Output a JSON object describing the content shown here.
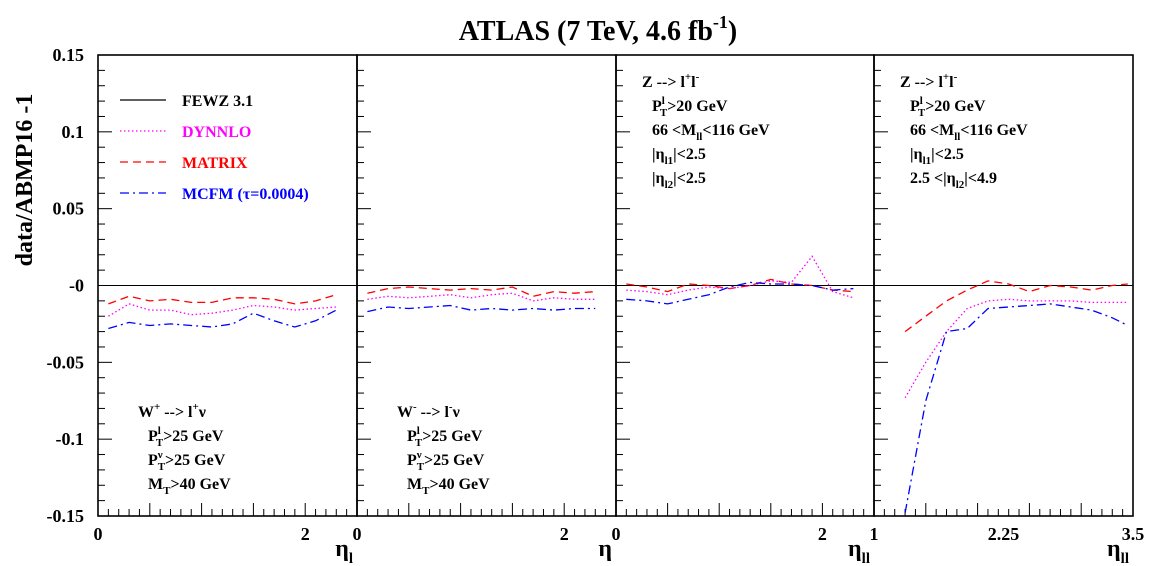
{
  "chart_data": {
    "type": "line",
    "title": {
      "main": "ATLAS (7 TeV, 4.6 fb",
      "sup": "-1",
      "close": ")"
    },
    "ylabel": "data/ABMP16 -1",
    "ylim": [
      -0.15,
      0.15
    ],
    "y_ticks": [
      "0.15",
      "0.1",
      "0.05",
      "-0",
      "-0.05",
      "-0.1",
      "-0.15"
    ],
    "y_tick_values": [
      0.15,
      0.1,
      0.05,
      0,
      -0.05,
      -0.1,
      -0.15
    ],
    "zero_line": true,
    "legend": {
      "placement": "top-left (panel 1)",
      "entries": [
        {
          "label": "FEWZ 3.1",
          "color": "#000000",
          "dash": "solid"
        },
        {
          "label": "DYNNLO",
          "color": "#ff00ff",
          "dash": "dotted"
        },
        {
          "label": "MATRIX",
          "color": "#ff0000",
          "dash": "dashed"
        },
        {
          "label": "MCFM (",
          "label_sym": "τ",
          "label_tail": "=0.0004)",
          "color": "#0000ff",
          "dash": "dashdot"
        }
      ]
    },
    "panels": [
      {
        "id": "w-plus",
        "xlim": [
          0,
          2.5
        ],
        "x_ticks": [
          {
            "v": 0,
            "label": "0"
          },
          {
            "v": 2,
            "label": "2"
          }
        ],
        "xlabel": {
          "base": "η",
          "sub": "l"
        },
        "annotation": [
          {
            "t": "W",
            "sup": "+",
            "mid": " --> l",
            "sup2": "+",
            "tail": "ν"
          },
          {
            "t": "P",
            "sup": "l",
            "sub": "T",
            "tail": ">25 GeV"
          },
          {
            "t": "P",
            "sup": "ν",
            "sub": "T",
            "tail": ">25 GeV"
          },
          {
            "t": "M",
            "sub": "T",
            "tail": ">40 GeV"
          }
        ],
        "x": [
          0.1,
          0.3,
          0.5,
          0.7,
          0.9,
          1.1,
          1.3,
          1.5,
          1.7,
          1.9,
          2.1,
          2.3
        ],
        "series": [
          {
            "name": "MATRIX",
            "values": [
              -0.012,
              -0.007,
              -0.01,
              -0.009,
              -0.011,
              -0.011,
              -0.008,
              -0.008,
              -0.009,
              -0.012,
              -0.01,
              -0.006
            ]
          },
          {
            "name": "DYNNLO",
            "values": [
              -0.02,
              -0.012,
              -0.016,
              -0.016,
              -0.019,
              -0.018,
              -0.016,
              -0.013,
              -0.014,
              -0.016,
              -0.015,
              -0.014
            ]
          },
          {
            "name": "MCFM (τ=0.0004)",
            "values": [
              -0.028,
              -0.024,
              -0.026,
              -0.025,
              -0.026,
              -0.027,
              -0.025,
              -0.018,
              -0.023,
              -0.027,
              -0.023,
              -0.016
            ]
          }
        ]
      },
      {
        "id": "w-minus",
        "xlim": [
          0,
          2.5
        ],
        "x_ticks": [
          {
            "v": 0,
            "label": "0"
          },
          {
            "v": 2,
            "label": "2"
          }
        ],
        "xlabel": {
          "base": "η",
          "sub": ""
        },
        "annotation": [
          {
            "t": "W",
            "sup": "-",
            "mid": " --> l",
            "sup2": "-",
            "tail": "ν"
          },
          {
            "t": "P",
            "sup": "l",
            "sub": "T",
            "tail": ">25 GeV"
          },
          {
            "t": "P",
            "sup": "ν",
            "sub": "T",
            "tail": ">25 GeV"
          },
          {
            "t": "M",
            "sub": "T",
            "tail": ">40 GeV"
          }
        ],
        "x": [
          0.1,
          0.3,
          0.5,
          0.7,
          0.9,
          1.1,
          1.3,
          1.5,
          1.7,
          1.9,
          2.1,
          2.3
        ],
        "series": [
          {
            "name": "MATRIX",
            "values": [
              -0.005,
              -0.002,
              -0.001,
              -0.002,
              -0.003,
              -0.002,
              -0.003,
              -0.001,
              -0.007,
              -0.004,
              -0.005,
              -0.004
            ]
          },
          {
            "name": "DYNNLO",
            "values": [
              -0.009,
              -0.007,
              -0.008,
              -0.007,
              -0.006,
              -0.008,
              -0.006,
              -0.005,
              -0.01,
              -0.008,
              -0.009,
              -0.009
            ]
          },
          {
            "name": "MCFM (τ=0.0004)",
            "values": [
              -0.017,
              -0.014,
              -0.015,
              -0.014,
              -0.013,
              -0.016,
              -0.015,
              -0.016,
              -0.015,
              -0.016,
              -0.015,
              -0.015
            ]
          }
        ]
      },
      {
        "id": "z-central",
        "xlim": [
          0,
          2.5
        ],
        "x_ticks": [
          {
            "v": 0,
            "label": "0"
          },
          {
            "v": 2,
            "label": "2"
          }
        ],
        "xlabel": {
          "base": "η",
          "sub": "ll"
        },
        "annotation": [
          {
            "t": "Z --> l",
            "sup": "+",
            "mid": "l",
            "sup2": "-"
          },
          {
            "t": "P",
            "sup": "l",
            "sub": "T",
            "tail": ">20 GeV"
          },
          {
            "t": "66 <M",
            "sub": "ll",
            "tail": "<116 GeV"
          },
          {
            "t": "|η",
            "sub": "l1",
            "tail": "|<2.5"
          },
          {
            "t": "|η",
            "sub": "l2",
            "tail": "|<2.5"
          }
        ],
        "x": [
          0.1,
          0.3,
          0.5,
          0.7,
          0.9,
          1.1,
          1.3,
          1.5,
          1.7,
          1.9,
          2.1,
          2.3
        ],
        "series": [
          {
            "name": "MATRIX",
            "values": [
              0.001,
              -0.001,
              -0.004,
              0.001,
              0.0,
              -0.002,
              0.0,
              0.004,
              0.001,
              0.0,
              -0.003,
              -0.004
            ]
          },
          {
            "name": "DYNNLO",
            "values": [
              -0.003,
              -0.004,
              -0.006,
              -0.003,
              -0.001,
              -0.002,
              0.0,
              0.003,
              0.002,
              0.019,
              -0.004,
              -0.008
            ]
          },
          {
            "name": "MCFM (τ=0.0004)",
            "values": [
              -0.009,
              -0.01,
              -0.012,
              -0.009,
              -0.006,
              -0.001,
              0.002,
              0.001,
              0.001,
              0.0,
              -0.003,
              -0.002
            ]
          }
        ]
      },
      {
        "id": "z-forward",
        "xlim": [
          1,
          3.5
        ],
        "x_ticks": [
          {
            "v": 1,
            "label": "1"
          },
          {
            "v": 2.25,
            "label": "2.25"
          },
          {
            "v": 3.5,
            "label": "3.5"
          }
        ],
        "xlabel": {
          "base": "η",
          "sub": "ll"
        },
        "annotation": [
          {
            "t": "Z --> l",
            "sup": "+",
            "mid": "l",
            "sup2": "-"
          },
          {
            "t": "P",
            "sup": "l",
            "sub": "T",
            "tail": ">20 GeV"
          },
          {
            "t": "66 <M",
            "sub": "ll",
            "tail": "<116 GeV"
          },
          {
            "t": "|η",
            "sub": "l1",
            "tail": "|<2.5"
          },
          {
            "t": "2.5 <|η",
            "sub": "l2",
            "tail": "|<4.9"
          }
        ],
        "x": [
          1.3,
          1.5,
          1.7,
          1.9,
          2.1,
          2.3,
          2.5,
          2.7,
          2.9,
          3.1,
          3.3,
          3.45
        ],
        "series": [
          {
            "name": "MATRIX",
            "values": [
              -0.03,
              -0.02,
              -0.01,
              -0.003,
              0.003,
              0.001,
              -0.004,
              0.0,
              -0.001,
              -0.003,
              0.0,
              0.001
            ]
          },
          {
            "name": "DYNNLO",
            "values": [
              -0.073,
              -0.05,
              -0.03,
              -0.015,
              -0.01,
              -0.009,
              -0.01,
              -0.01,
              -0.01,
              -0.011,
              -0.011,
              -0.011
            ]
          },
          {
            "name": "MCFM (τ=0.0004)",
            "values": [
              -0.148,
              -0.075,
              -0.03,
              -0.028,
              -0.015,
              -0.014,
              -0.013,
              -0.012,
              -0.014,
              -0.016,
              -0.021,
              -0.026
            ]
          }
        ]
      }
    ]
  }
}
